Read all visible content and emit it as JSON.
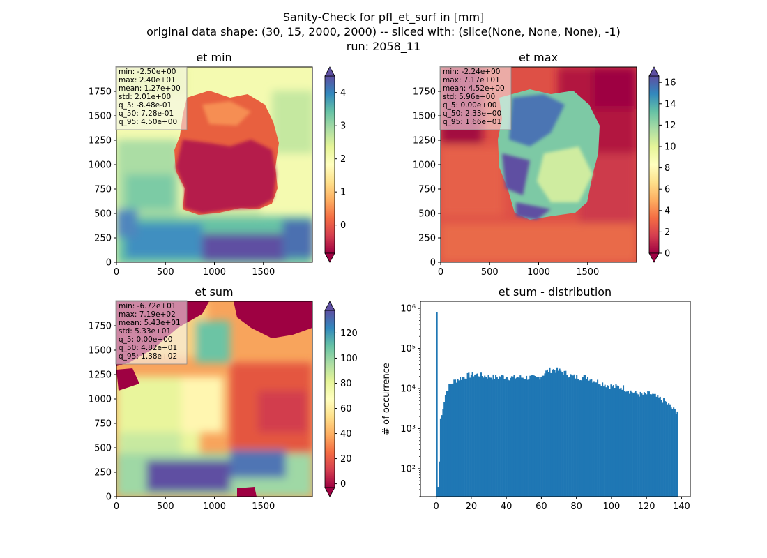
{
  "suptitle": [
    "Sanity-Check for pfl_et_surf in [mm]",
    "original data shape: (30, 15, 2000, 2000) -- sliced with: (slice(None, None, None), -1)",
    "run: 2058_11"
  ],
  "panels": [
    {
      "title": "et min",
      "stats": [
        "min: -2.50e+00",
        "max: 2.40e+01",
        "mean: 1.27e+00",
        "std: 2.01e+00",
        "q_5: -8.48e-01",
        "q_50: 7.28e-01",
        "q_95: 4.50e+00"
      ],
      "xticks": [
        "0",
        "500",
        "1000",
        "1500"
      ],
      "yticks": [
        "0",
        "250",
        "500",
        "750",
        "1000",
        "1250",
        "1500",
        "1750"
      ],
      "colorbar": {
        "ticks": [
          0,
          1,
          2,
          3,
          4
        ],
        "labels": [
          "0",
          "1",
          "2",
          "3",
          "4"
        ],
        "vmin": -0.85,
        "vmax": 4.5
      }
    },
    {
      "title": "et max",
      "stats": [
        "min: -2.24e+00",
        "max: 7.17e+01",
        "mean: 4.52e+00",
        "std: 5.96e+00",
        "q_5: 0.00e+00",
        "q_50: 2.33e+00",
        "q_95: 1.66e+01"
      ],
      "xticks": [
        "0",
        "500",
        "1000",
        "1500"
      ],
      "yticks": [
        "0",
        "250",
        "500",
        "750",
        "1000",
        "1250",
        "1500",
        "1750"
      ],
      "colorbar": {
        "ticks": [
          0,
          2,
          4,
          6,
          8,
          10,
          12,
          14,
          16
        ],
        "labels": [
          "0",
          "2",
          "4",
          "6",
          "8",
          "10",
          "12",
          "14",
          "16"
        ],
        "vmin": 0,
        "vmax": 16.6
      }
    },
    {
      "title": "et sum",
      "stats": [
        "min: -6.72e+01",
        "max: 7.19e+02",
        "mean: 5.43e+01",
        "std: 5.33e+01",
        "q_5: 0.00e+00",
        "q_50: 4.82e+01",
        "q_95: 1.38e+02"
      ],
      "xticks": [
        "0",
        "500",
        "1000",
        "1500"
      ],
      "yticks": [
        "0",
        "250",
        "500",
        "750",
        "1000",
        "1250",
        "1500",
        "1750"
      ],
      "colorbar": {
        "ticks": [
          0,
          20,
          40,
          60,
          80,
          100,
          120
        ],
        "labels": [
          "0",
          "20",
          "40",
          "60",
          "80",
          "100",
          "120"
        ],
        "vmin": -3,
        "vmax": 138
      }
    }
  ],
  "chart_data": [
    {
      "type": "heatmap",
      "title": "et min",
      "xlim": [
        0,
        2000
      ],
      "ylim": [
        0,
        2000
      ],
      "colormap": "Spectral",
      "colorbar_range": [
        -0.85,
        4.5
      ]
    },
    {
      "type": "heatmap",
      "title": "et max",
      "xlim": [
        0,
        2000
      ],
      "ylim": [
        0,
        2000
      ],
      "colormap": "Spectral",
      "colorbar_range": [
        0,
        16.6
      ]
    },
    {
      "type": "heatmap",
      "title": "et sum",
      "xlim": [
        0,
        2000
      ],
      "ylim": [
        0,
        2000
      ],
      "colormap": "Spectral",
      "colorbar_range": [
        -3,
        138
      ]
    },
    {
      "type": "bar",
      "title": "et sum - distribution",
      "ylabel": "# of occurrence",
      "xlabel": "",
      "yscale": "log",
      "xlim": [
        -9,
        145
      ],
      "ylim": [
        20,
        1500000
      ],
      "xticks": [
        0,
        20,
        40,
        60,
        80,
        100,
        120,
        140
      ],
      "yticks": [
        {
          "v": 100,
          "label": "10²"
        },
        {
          "v": 1000,
          "label": "10³"
        },
        {
          "v": 10000,
          "label": "10⁴"
        },
        {
          "v": 100000,
          "label": "10⁵"
        },
        {
          "v": 1000000,
          "label": "10⁶"
        }
      ],
      "bin_width": 0.7,
      "bar_color": "#1f77b4",
      "profile": [
        [
          0,
          800000
        ],
        [
          0.7,
          35
        ],
        [
          1.4,
          150
        ],
        [
          2.1,
          2000
        ],
        [
          2.8,
          1500
        ],
        [
          3.5,
          3000
        ],
        [
          4.5,
          5000
        ],
        [
          5.5,
          8000
        ],
        [
          7,
          11000
        ],
        [
          9,
          14000
        ],
        [
          12,
          17000
        ],
        [
          15,
          19000
        ],
        [
          18,
          21000
        ],
        [
          22,
          23000
        ],
        [
          26,
          21000
        ],
        [
          30,
          20000
        ],
        [
          34,
          19000
        ],
        [
          38,
          20000
        ],
        [
          42,
          19000
        ],
        [
          46,
          19000
        ],
        [
          50,
          19000
        ],
        [
          54,
          19000
        ],
        [
          57,
          18000
        ],
        [
          60,
          21000
        ],
        [
          63,
          27000
        ],
        [
          66,
          30000
        ],
        [
          70,
          28000
        ],
        [
          74,
          24000
        ],
        [
          78,
          20000
        ],
        [
          82,
          19000
        ],
        [
          86,
          20000
        ],
        [
          90,
          16000
        ],
        [
          94,
          14000
        ],
        [
          98,
          12000
        ],
        [
          102,
          11000
        ],
        [
          106,
          11000
        ],
        [
          110,
          9000
        ],
        [
          114,
          7500
        ],
        [
          118,
          7000
        ],
        [
          122,
          7500
        ],
        [
          126,
          6000
        ],
        [
          130,
          5000
        ],
        [
          133,
          3800
        ],
        [
          135,
          3000
        ],
        [
          137,
          2800
        ],
        [
          137.7,
          2800
        ],
        [
          138.2,
          0
        ]
      ]
    }
  ]
}
